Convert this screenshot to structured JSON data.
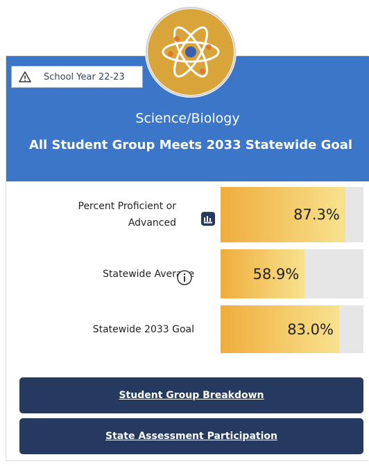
{
  "badge": "School Year 22-23",
  "subject": "Science/Biology",
  "title": "All Student Group Meets 2033 Statewide Goal",
  "metrics": {
    "labels": [
      "Percent Proficient or Advanced",
      "Statewide Average",
      "Statewide 2033 Goal"
    ],
    "values": [
      87.3,
      58.9,
      83.0
    ],
    "value_labels": [
      "87.3%",
      "58.9%",
      "83.0%"
    ],
    "xlim": [
      0,
      100
    ]
  },
  "buttons": [
    "Student Group Breakdown",
    "State Assessment Participation"
  ]
}
